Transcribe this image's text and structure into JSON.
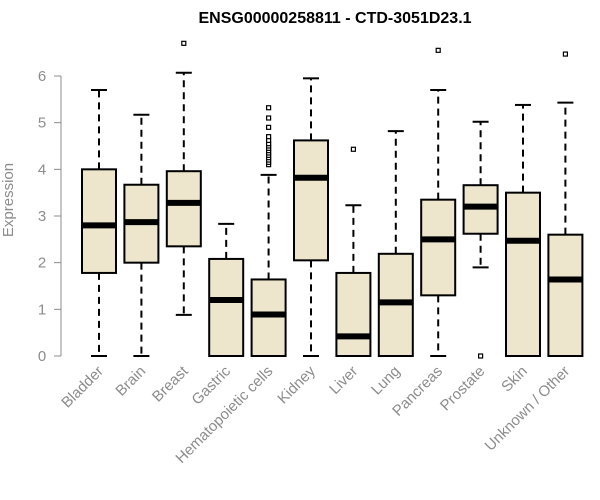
{
  "chart_data": {
    "type": "box",
    "title": "ENSG00000258811 - CTD-3051D23.1",
    "ylabel": "Expression",
    "xlabel": "",
    "ylim": [
      0,
      6.5
    ],
    "yticks": [
      0,
      1,
      2,
      3,
      4,
      5,
      6
    ],
    "yticklabels": [
      "0",
      "1",
      "2",
      "3",
      "4",
      "5",
      "6"
    ],
    "grid": false,
    "colors": {
      "box_fill": "#ede6cc",
      "box_stroke": "#000000",
      "axis": "#8c8c8c",
      "text": "#8c8c8c"
    },
    "categories": [
      "Bladder",
      "Brain",
      "Breast",
      "Gastric",
      "Hematopoietic cells",
      "Kidney",
      "Liver",
      "Lung",
      "Pancreas",
      "Prostate",
      "Skin",
      "Unknown / Other"
    ],
    "boxes": [
      {
        "category": "Bladder",
        "whisker_low": 0.0,
        "q1": 1.78,
        "median": 2.8,
        "q3": 4.0,
        "whisker_high": 5.7,
        "outliers": []
      },
      {
        "category": "Brain",
        "whisker_low": 0.0,
        "q1": 2.0,
        "median": 2.87,
        "q3": 3.67,
        "whisker_high": 5.17,
        "outliers": []
      },
      {
        "category": "Breast",
        "whisker_low": 0.88,
        "q1": 2.35,
        "median": 3.28,
        "q3": 3.96,
        "whisker_high": 6.07,
        "outliers": [
          6.7
        ]
      },
      {
        "category": "Gastric",
        "whisker_low": 0.0,
        "q1": 0.0,
        "median": 1.2,
        "q3": 2.08,
        "whisker_high": 2.83,
        "outliers": []
      },
      {
        "category": "Hematopoietic cells",
        "whisker_low": 0.0,
        "q1": 0.0,
        "median": 0.89,
        "q3": 1.64,
        "whisker_high": 3.88,
        "outliers": [
          4.1,
          4.15,
          4.2,
          4.25,
          4.3,
          4.35,
          4.4,
          4.45,
          4.5,
          4.55,
          4.62,
          4.7,
          4.9,
          5.1,
          5.32
        ]
      },
      {
        "category": "Kidney",
        "whisker_low": 0.0,
        "q1": 2.05,
        "median": 3.82,
        "q3": 4.62,
        "whisker_high": 5.95,
        "outliers": []
      },
      {
        "category": "Liver",
        "whisker_low": 0.0,
        "q1": 0.0,
        "median": 0.42,
        "q3": 1.78,
        "whisker_high": 3.23,
        "outliers": [
          4.43
        ]
      },
      {
        "category": "Lung",
        "whisker_low": 0.0,
        "q1": 0.0,
        "median": 1.15,
        "q3": 2.19,
        "whisker_high": 4.82,
        "outliers": []
      },
      {
        "category": "Pancreas",
        "whisker_low": 0.0,
        "q1": 1.3,
        "median": 2.5,
        "q3": 3.35,
        "whisker_high": 5.7,
        "outliers": [
          6.55
        ]
      },
      {
        "category": "Prostate",
        "whisker_low": 1.9,
        "q1": 2.62,
        "median": 3.2,
        "q3": 3.66,
        "whisker_high": 5.02,
        "outliers": [
          0.0
        ]
      },
      {
        "category": "Skin",
        "whisker_low": 0.0,
        "q1": 0.0,
        "median": 2.47,
        "q3": 3.5,
        "whisker_high": 5.38,
        "outliers": []
      },
      {
        "category": "Unknown / Other",
        "whisker_low": 0.0,
        "q1": 0.0,
        "median": 1.64,
        "q3": 2.6,
        "whisker_high": 5.43,
        "outliers": [
          6.47
        ]
      }
    ]
  }
}
